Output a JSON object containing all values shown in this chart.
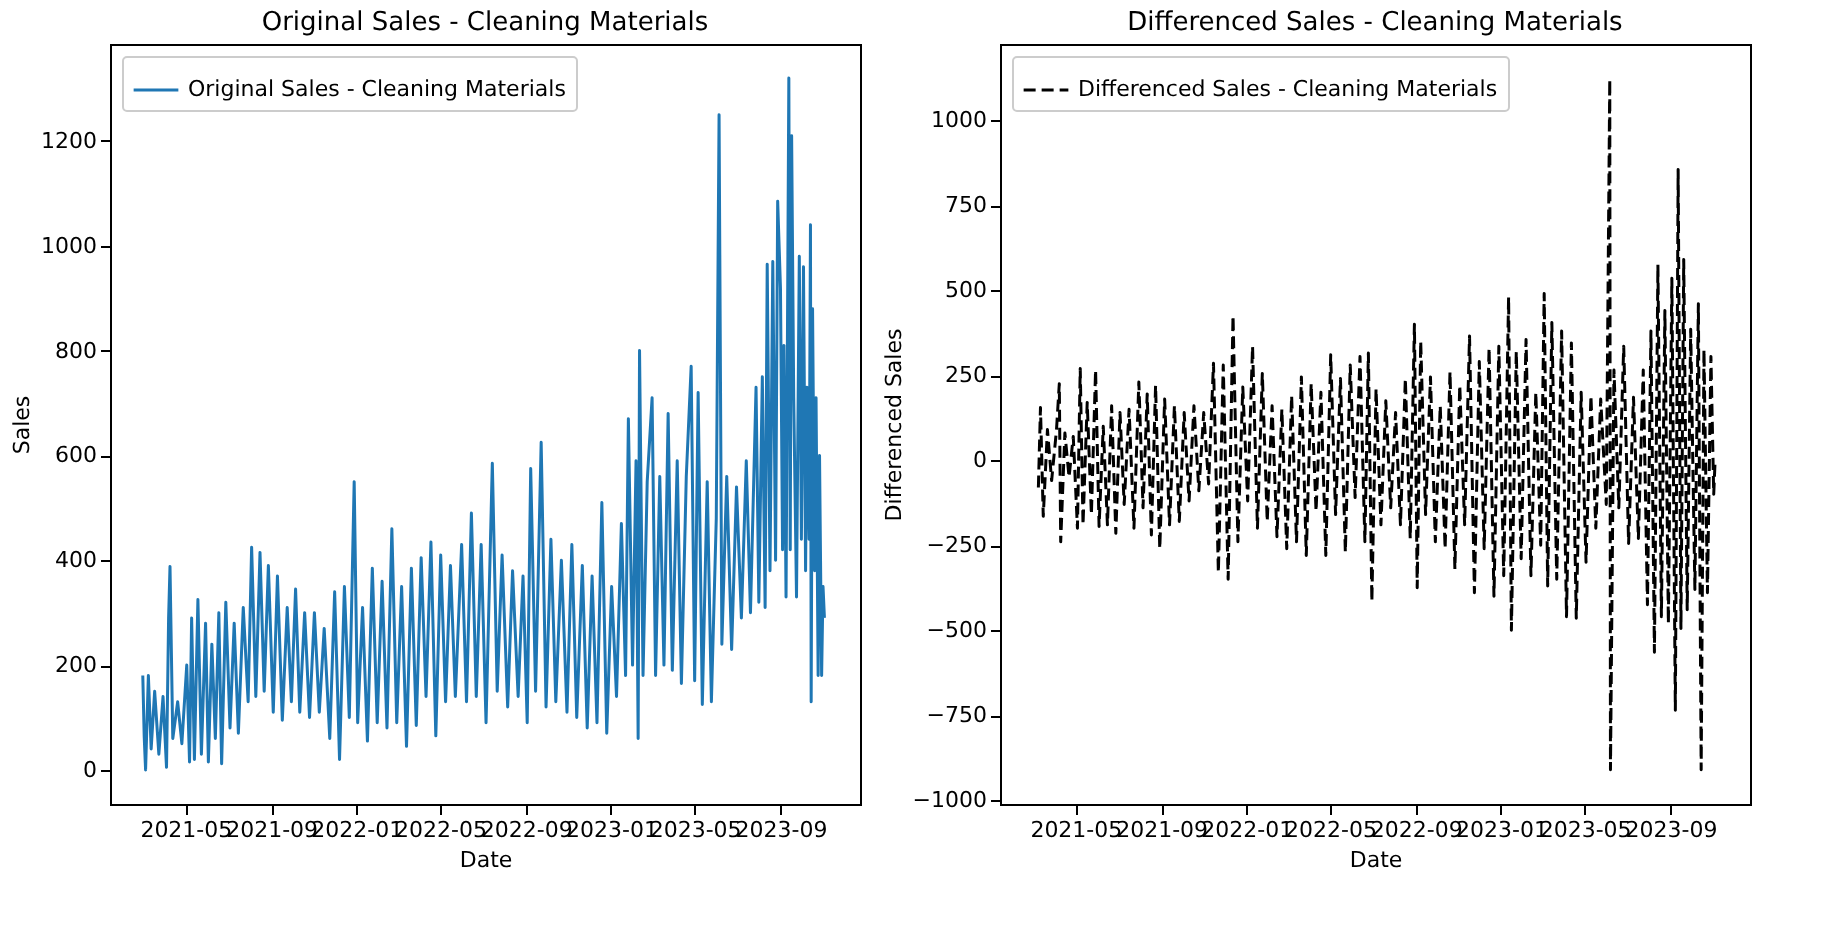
{
  "chart_data": [
    {
      "type": "line",
      "title": "Original Sales - Cleaning Materials",
      "xlabel": "Date",
      "ylabel": "Sales",
      "legend": "top left",
      "grid": false,
      "xlim": [
        "2021-01-13",
        "2023-12-24"
      ],
      "xticks": [
        "2021-05",
        "2021-09",
        "2022-01",
        "2022-05",
        "2022-09",
        "2023-01",
        "2023-05",
        "2023-09"
      ],
      "ylim": [
        -65,
        1385
      ],
      "yticks": [
        0,
        200,
        400,
        600,
        800,
        1000,
        1200
      ],
      "series": [
        {
          "name": "Original Sales - Cleaning Materials",
          "color": "#1f77b4",
          "line_style": "solid",
          "x": [
            "2021-03-01",
            "2021-03-03",
            "2021-03-05",
            "2021-03-09",
            "2021-03-13",
            "2021-03-18",
            "2021-03-24",
            "2021-03-30",
            "2021-04-04",
            "2021-04-07",
            "2021-04-09",
            "2021-04-13",
            "2021-04-20",
            "2021-04-26",
            "2021-05-03",
            "2021-05-07",
            "2021-05-10",
            "2021-05-14",
            "2021-05-19",
            "2021-05-24",
            "2021-05-30",
            "2021-06-03",
            "2021-06-08",
            "2021-06-13",
            "2021-06-18",
            "2021-06-22",
            "2021-06-28",
            "2021-07-04",
            "2021-07-10",
            "2021-07-16",
            "2021-07-23",
            "2021-07-30",
            "2021-08-04",
            "2021-08-10",
            "2021-08-16",
            "2021-08-22",
            "2021-08-28",
            "2021-09-04",
            "2021-09-10",
            "2021-09-17",
            "2021-09-24",
            "2021-09-30",
            "2021-10-06",
            "2021-10-12",
            "2021-10-19",
            "2021-10-26",
            "2021-11-02",
            "2021-11-09",
            "2021-11-16",
            "2021-11-24",
            "2021-12-01",
            "2021-12-08",
            "2021-12-15",
            "2021-12-22",
            "2021-12-29",
            "2022-01-03",
            "2022-01-10",
            "2022-01-17",
            "2022-01-24",
            "2022-01-31",
            "2022-02-07",
            "2022-02-14",
            "2022-02-21",
            "2022-02-28",
            "2022-03-07",
            "2022-03-14",
            "2022-03-21",
            "2022-03-28",
            "2022-04-04",
            "2022-04-11",
            "2022-04-18",
            "2022-04-25",
            "2022-05-02",
            "2022-05-09",
            "2022-05-16",
            "2022-05-23",
            "2022-06-01",
            "2022-06-08",
            "2022-06-15",
            "2022-06-22",
            "2022-06-29",
            "2022-07-06",
            "2022-07-15",
            "2022-07-22",
            "2022-07-29",
            "2022-08-06",
            "2022-08-13",
            "2022-08-21",
            "2022-08-28",
            "2022-09-03",
            "2022-09-08",
            "2022-09-15",
            "2022-09-23",
            "2022-09-30",
            "2022-10-07",
            "2022-10-14",
            "2022-10-22",
            "2022-10-30",
            "2022-11-06",
            "2022-11-13",
            "2022-11-21",
            "2022-11-28",
            "2022-12-05",
            "2022-12-12",
            "2022-12-19",
            "2022-12-26",
            "2023-01-02",
            "2023-01-09",
            "2023-01-16",
            "2023-01-22",
            "2023-01-26",
            "2023-02-01",
            "2023-02-06",
            "2023-02-09",
            "2023-02-11",
            "2023-02-16",
            "2023-02-22",
            "2023-03-01",
            "2023-03-06",
            "2023-03-12",
            "2023-03-18",
            "2023-03-24",
            "2023-03-30",
            "2023-04-06",
            "2023-04-12",
            "2023-04-19",
            "2023-04-26",
            "2023-05-01",
            "2023-05-06",
            "2023-05-12",
            "2023-05-19",
            "2023-05-25",
            "2023-06-01",
            "2023-06-05",
            "2023-06-09",
            "2023-06-16",
            "2023-06-23",
            "2023-06-30",
            "2023-07-07",
            "2023-07-14",
            "2023-07-20",
            "2023-07-28",
            "2023-08-01",
            "2023-08-06",
            "2023-08-10",
            "2023-08-13",
            "2023-08-17",
            "2023-08-21",
            "2023-08-25",
            "2023-08-28",
            "2023-09-01",
            "2023-09-04",
            "2023-09-06",
            "2023-09-09",
            "2023-09-13",
            "2023-09-15",
            "2023-09-17",
            "2023-09-20",
            "2023-09-24",
            "2023-09-28",
            "2023-10-01",
            "2023-10-04",
            "2023-10-07",
            "2023-10-09",
            "2023-10-12",
            "2023-10-14",
            "2023-10-15",
            "2023-10-17",
            "2023-10-20",
            "2023-10-22",
            "2023-10-25",
            "2023-10-27",
            "2023-10-30",
            "2023-11-01",
            "2023-11-03"
          ],
          "values": [
            180,
            65,
            0,
            180,
            40,
            150,
            30,
            140,
            5,
            290,
            388,
            60,
            130,
            50,
            200,
            15,
            290,
            20,
            325,
            30,
            280,
            15,
            240,
            60,
            300,
            12,
            320,
            80,
            280,
            70,
            310,
            130,
            425,
            140,
            415,
            150,
            390,
            110,
            370,
            95,
            310,
            130,
            345,
            110,
            300,
            100,
            300,
            110,
            270,
            60,
            340,
            20,
            350,
            100,
            550,
            90,
            310,
            55,
            385,
            90,
            360,
            80,
            460,
            90,
            350,
            45,
            385,
            85,
            405,
            140,
            435,
            65,
            410,
            130,
            390,
            140,
            430,
            130,
            490,
            140,
            430,
            90,
            585,
            150,
            410,
            120,
            380,
            140,
            370,
            90,
            575,
            150,
            625,
            120,
            440,
            130,
            400,
            110,
            430,
            100,
            390,
            80,
            370,
            90,
            510,
            70,
            350,
            140,
            470,
            180,
            670,
            200,
            590,
            60,
            800,
            180,
            550,
            710,
            180,
            560,
            200,
            680,
            190,
            590,
            165,
            560,
            770,
            170,
            720,
            125,
            550,
            130,
            480,
            1250,
            240,
            560,
            230,
            540,
            290,
            590,
            300,
            730,
            320,
            750,
            310,
            965,
            380,
            970,
            400,
            1085,
            920,
            420,
            810,
            330,
            1320,
            420,
            1210,
            710,
            330,
            980,
            440,
            960,
            380,
            730,
            440,
            1040,
            130,
            880,
            380,
            710,
            180,
            600,
            180,
            350,
            290
          ]
        }
      ]
    },
    {
      "type": "line",
      "title": "Differenced Sales - Cleaning Materials",
      "xlabel": "Date",
      "ylabel": "Differenced Sales",
      "legend": "top left",
      "grid": false,
      "xlim": [
        "2021-01-13",
        "2023-12-24"
      ],
      "xticks": [
        "2021-05",
        "2021-09",
        "2022-01",
        "2022-05",
        "2022-09",
        "2023-01",
        "2023-05",
        "2023-09"
      ],
      "ylim": [
        -1011,
        1224
      ],
      "yticks": [
        {
          "value": -1000,
          "label": "−1000"
        },
        {
          "value": -750,
          "label": "−750"
        },
        {
          "value": -500,
          "label": "−500"
        },
        {
          "value": -250,
          "label": "−250"
        },
        0,
        250,
        500,
        750,
        1000
      ],
      "series": [
        {
          "name": "Differenced Sales - Cleaning Materials",
          "color": "#000000",
          "line_style": "dashed",
          "x": [
            "2021-03-09",
            "2021-03-12",
            "2021-03-16",
            "2021-03-22",
            "2021-03-28",
            "2021-04-04",
            "2021-04-08",
            "2021-04-10",
            "2021-04-16",
            "2021-04-22",
            "2021-04-28",
            "2021-05-04",
            "2021-05-08",
            "2021-05-12",
            "2021-05-18",
            "2021-05-24",
            "2021-05-30",
            "2021-06-04",
            "2021-06-10",
            "2021-06-16",
            "2021-06-22",
            "2021-06-28",
            "2021-07-04",
            "2021-07-10",
            "2021-07-17",
            "2021-07-24",
            "2021-07-31",
            "2021-08-06",
            "2021-08-12",
            "2021-08-18",
            "2021-08-24",
            "2021-08-30",
            "2021-09-06",
            "2021-09-13",
            "2021-09-20",
            "2021-09-27",
            "2021-10-04",
            "2021-10-11",
            "2021-10-18",
            "2021-10-25",
            "2021-11-01",
            "2021-11-08",
            "2021-11-15",
            "2021-11-22",
            "2021-11-29",
            "2021-12-06",
            "2021-12-13",
            "2021-12-20",
            "2021-12-27",
            "2022-01-03",
            "2022-01-10",
            "2022-01-17",
            "2022-01-24",
            "2022-01-31",
            "2022-02-07",
            "2022-02-14",
            "2022-02-21",
            "2022-02-28",
            "2022-03-07",
            "2022-03-14",
            "2022-03-21",
            "2022-03-28",
            "2022-04-04",
            "2022-04-11",
            "2022-04-18",
            "2022-04-25",
            "2022-05-02",
            "2022-05-09",
            "2022-05-16",
            "2022-05-23",
            "2022-05-30",
            "2022-06-06",
            "2022-06-13",
            "2022-06-20",
            "2022-06-25",
            "2022-06-30",
            "2022-07-06",
            "2022-07-13",
            "2022-07-20",
            "2022-07-27",
            "2022-08-03",
            "2022-08-10",
            "2022-08-17",
            "2022-08-24",
            "2022-08-30",
            "2022-09-03",
            "2022-09-08",
            "2022-09-15",
            "2022-09-22",
            "2022-09-29",
            "2022-10-06",
            "2022-10-13",
            "2022-10-20",
            "2022-10-27",
            "2022-11-03",
            "2022-11-10",
            "2022-11-17",
            "2022-11-24",
            "2022-12-01",
            "2022-12-08",
            "2022-12-15",
            "2022-12-22",
            "2022-12-29",
            "2023-01-05",
            "2023-01-12",
            "2023-01-16",
            "2023-01-23",
            "2023-01-30",
            "2023-02-06",
            "2023-02-13",
            "2023-02-20",
            "2023-02-27",
            "2023-03-04",
            "2023-03-09",
            "2023-03-15",
            "2023-03-22",
            "2023-03-29",
            "2023-04-05",
            "2023-04-12",
            "2023-04-19",
            "2023-04-26",
            "2023-05-03",
            "2023-05-10",
            "2023-05-17",
            "2023-05-24",
            "2023-06-01",
            "2023-06-06",
            "2023-06-07",
            "2023-06-12",
            "2023-06-19",
            "2023-06-26",
            "2023-07-03",
            "2023-07-10",
            "2023-07-17",
            "2023-07-24",
            "2023-07-30",
            "2023-08-04",
            "2023-08-09",
            "2023-08-14",
            "2023-08-19",
            "2023-08-24",
            "2023-08-29",
            "2023-09-03",
            "2023-09-08",
            "2023-09-12",
            "2023-09-16",
            "2023-09-20",
            "2023-09-25",
            "2023-09-30",
            "2023-10-06",
            "2023-10-11",
            "2023-10-15",
            "2023-10-19",
            "2023-10-24",
            "2023-10-29",
            "2023-11-02",
            "2023-11-04"
          ],
          "values": [
            -80,
            155,
            -165,
            90,
            -60,
            90,
            225,
            -240,
            80,
            -50,
            70,
            -200,
            270,
            -190,
            170,
            -160,
            265,
            -195,
            100,
            -190,
            160,
            -215,
            140,
            -130,
            150,
            -200,
            230,
            -140,
            195,
            -220,
            220,
            -260,
            180,
            -190,
            160,
            -180,
            140,
            -120,
            160,
            -90,
            140,
            -70,
            285,
            -330,
            280,
            -350,
            425,
            -240,
            215,
            -120,
            335,
            -200,
            255,
            -180,
            160,
            -225,
            150,
            -260,
            190,
            -240,
            245,
            -280,
            225,
            -150,
            200,
            -280,
            310,
            -160,
            240,
            -270,
            280,
            -110,
            305,
            -240,
            315,
            -415,
            210,
            -190,
            175,
            -140,
            140,
            -190,
            240,
            -230,
            400,
            -375,
            350,
            -160,
            245,
            -240,
            160,
            -260,
            260,
            -320,
            220,
            -190,
            365,
            -390,
            290,
            -260,
            330,
            -400,
            335,
            -340,
            480,
            -500,
            320,
            -290,
            355,
            -340,
            200,
            -250,
            490,
            -370,
            405,
            -350,
            380,
            -460,
            345,
            -465,
            200,
            -300,
            190,
            -200,
            180,
            -130,
            1120,
            -910,
            265,
            -140,
            335,
            -245,
            185,
            -230,
            265,
            -425,
            380,
            -565,
            575,
            -460,
            440,
            -480,
            535,
            -735,
            855,
            -495,
            590,
            -440,
            385,
            -380,
            460,
            -910,
            325,
            -390,
            305,
            -100,
            0
          ]
        }
      ]
    }
  ]
}
